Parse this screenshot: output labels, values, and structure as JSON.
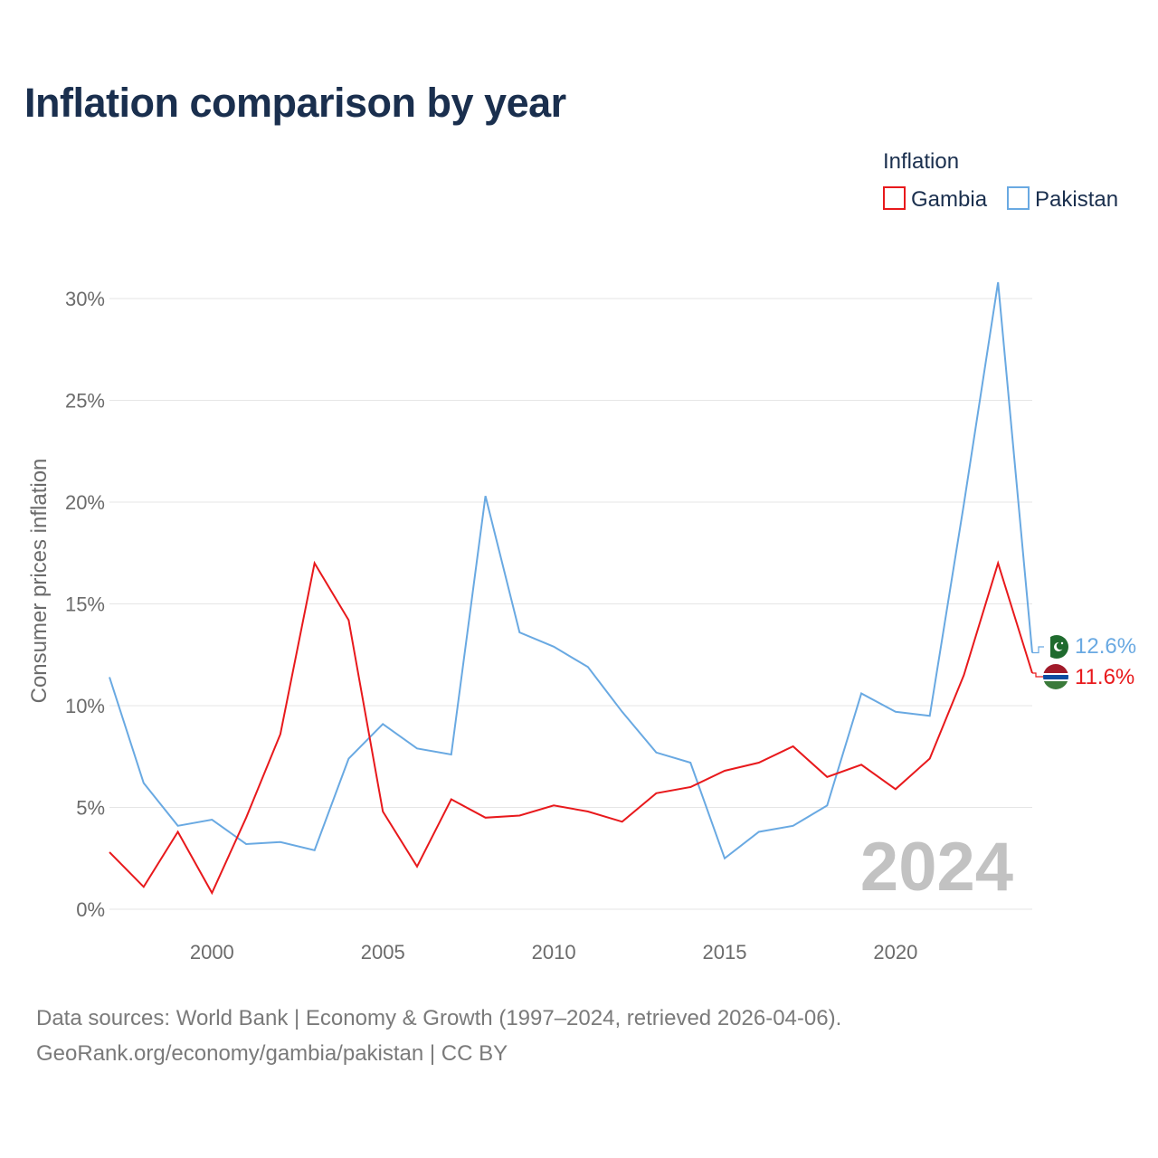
{
  "title": "Inflation comparison by year",
  "colors": {
    "gambia": "#e8191c",
    "pakistan": "#69a9e2",
    "grid": "#e6e6e6",
    "axis_text": "#6b6b6b",
    "title": "#1a2f4e"
  },
  "icons": {
    "gambia_flag": "gambia-flag-icon",
    "pakistan_flag": "pakistan-flag-icon"
  },
  "chart_data": {
    "type": "line",
    "title": "Inflation comparison by year",
    "xlabel": "",
    "ylabel": "Consumer prices inflation",
    "xlim": [
      1997,
      2024
    ],
    "ylim": [
      0,
      31
    ],
    "y_ticks": [
      0,
      5,
      10,
      15,
      20,
      25,
      30
    ],
    "y_tick_labels": [
      "0%",
      "5%",
      "10%",
      "15%",
      "20%",
      "25%",
      "30%"
    ],
    "x_ticks": [
      2000,
      2005,
      2010,
      2015,
      2020
    ],
    "x_tick_labels": [
      "2000",
      "2005",
      "2010",
      "2015",
      "2020"
    ],
    "grid": true,
    "legend_title": "Inflation",
    "legend_position": "top-right",
    "current_year": "2024",
    "x": [
      1997,
      1998,
      1999,
      2000,
      2001,
      2002,
      2003,
      2004,
      2005,
      2006,
      2007,
      2008,
      2009,
      2010,
      2011,
      2012,
      2013,
      2014,
      2015,
      2016,
      2017,
      2018,
      2019,
      2020,
      2021,
      2022,
      2023,
      2024
    ],
    "series": [
      {
        "name": "Gambia",
        "color": "#e8191c",
        "end_label": "11.6%",
        "values": [
          2.8,
          1.1,
          3.8,
          0.8,
          4.5,
          8.6,
          17.0,
          14.2,
          4.8,
          2.1,
          5.4,
          4.5,
          4.6,
          5.1,
          4.8,
          4.3,
          5.7,
          6.0,
          6.8,
          7.2,
          8.0,
          6.5,
          7.1,
          5.9,
          7.4,
          11.5,
          17.0,
          11.6
        ]
      },
      {
        "name": "Pakistan",
        "color": "#69a9e2",
        "end_label": "12.6%",
        "values": [
          11.4,
          6.2,
          4.1,
          4.4,
          3.2,
          3.3,
          2.9,
          7.4,
          9.1,
          7.9,
          7.6,
          20.3,
          13.6,
          12.9,
          11.9,
          9.7,
          7.7,
          7.2,
          2.5,
          3.8,
          4.1,
          5.1,
          10.6,
          9.7,
          9.5,
          19.9,
          30.8,
          12.6
        ]
      }
    ]
  },
  "footer": {
    "line1": "Data sources: World Bank | Economy & Growth (1997–2024, retrieved 2026-04-06).",
    "line2": "GeoRank.org/economy/gambia/pakistan | CC BY"
  }
}
